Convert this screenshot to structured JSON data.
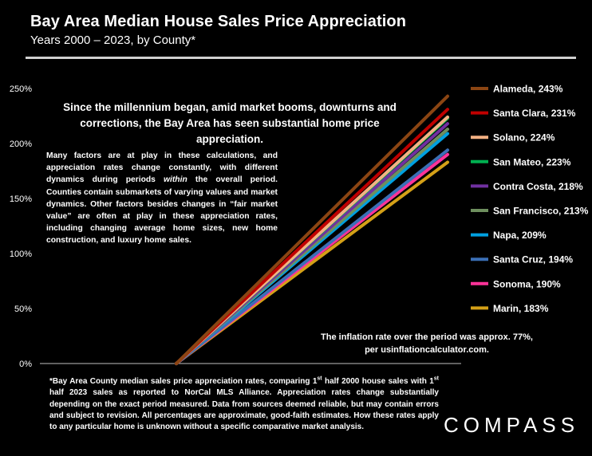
{
  "header": {
    "title": "Bay Area Median House Sales Price Appreciation",
    "subtitle": "Years 2000 – 2023, by County*"
  },
  "callouts": {
    "main": "Since the millennium began, amid market booms, downturns and corrections, the Bay Area has seen substantial home price appreciation.",
    "factors_1": "Many factors are at play in these calculations, and appreciation rates change constantly, with different dynamics during periods ",
    "factors_italic": "within",
    "factors_2": " the overall period. Counties contain submarkets of varying values and market dynamics. Other factors besides changes in “fair market value” are often at play in these appreciation rates, including  changing average home sizes, new home construction, and luxury home sales.",
    "inflation": "The inflation rate over the period was approx. 77%, per usinflationcalculator.com."
  },
  "footnote": {
    "part1": "*Bay Area County median sales price appreciation rates, comparing 1",
    "sup1": "st",
    "part2": " half 2000 house sales with 1",
    "sup2": "st",
    "part3": " half 2023 sales as reported to NorCal MLS Alliance. Appreciation rates change substantially depending on the exact period measured. Data from sources deemed reliable, but may contain errors and subject to revision. All percentages are approximate, good-faith estimates. How these rates apply to any particular home is unknown without a specific comparative market analysis."
  },
  "brand": {
    "logo_text": "COMPASS"
  },
  "chart_data": {
    "type": "line",
    "x": [
      "2000",
      "2023"
    ],
    "ylim": [
      0,
      250
    ],
    "yticks": [
      "0%",
      "50%",
      "100%",
      "150%",
      "200%",
      "250%"
    ],
    "grid": false,
    "legend_position": "right",
    "series": [
      {
        "name": "Alameda, 243%",
        "values": [
          0,
          243
        ],
        "color": "#8b4513"
      },
      {
        "name": "Santa Clara, 231%",
        "values": [
          0,
          231
        ],
        "color": "#c00000"
      },
      {
        "name": "Solano, 224%",
        "values": [
          0,
          224
        ],
        "color": "#f4b183"
      },
      {
        "name": "San Mateo, 223%",
        "values": [
          0,
          223
        ],
        "color": "#00b050"
      },
      {
        "name": "Contra Costa, 218%",
        "values": [
          0,
          218
        ],
        "color": "#7030a0"
      },
      {
        "name": "San Francisco, 213%",
        "values": [
          0,
          213
        ],
        "color": "#6e8f5e"
      },
      {
        "name": "Napa, 209%",
        "values": [
          0,
          209
        ],
        "color": "#00a0e0"
      },
      {
        "name": "Santa Cruz, 194%",
        "values": [
          0,
          194
        ],
        "color": "#3b6fb6"
      },
      {
        "name": "Sonoma, 190%",
        "values": [
          0,
          190
        ],
        "color": "#ff3399"
      },
      {
        "name": "Marin, 183%",
        "values": [
          0,
          183
        ],
        "color": "#d4a017"
      }
    ]
  }
}
